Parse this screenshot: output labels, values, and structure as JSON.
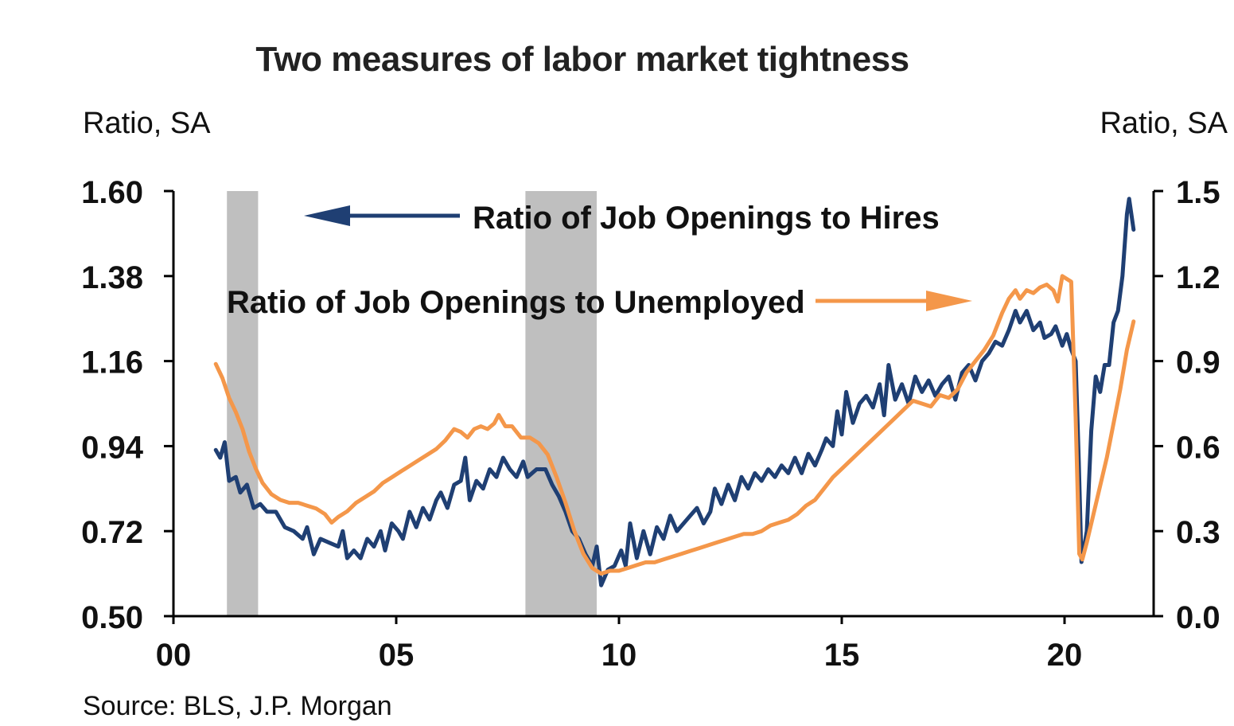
{
  "chart_data": {
    "type": "line",
    "title": "Two measures of labor market tightness",
    "ylabel_left": "Ratio, SA",
    "ylabel_right": "Ratio, SA",
    "source": "Source: BLS, J.P. Morgan",
    "x_range": [
      2000,
      2022
    ],
    "x_ticks": [
      {
        "value": 2000,
        "label": "00"
      },
      {
        "value": 2005,
        "label": "05"
      },
      {
        "value": 2010,
        "label": "10"
      },
      {
        "value": 2015,
        "label": "15"
      },
      {
        "value": 2020,
        "label": "20"
      }
    ],
    "y_left": {
      "range": [
        0.5,
        1.6
      ],
      "ticks": [
        "0.50",
        "0.72",
        "0.94",
        "1.16",
        "1.38",
        "1.60"
      ]
    },
    "y_right": {
      "range": [
        0.0,
        1.5
      ],
      "ticks": [
        "0.0",
        "0.3",
        "0.6",
        "0.9",
        "1.2",
        "1.5"
      ]
    },
    "recessions": [
      [
        2001.2,
        2001.9
      ],
      [
        2007.9,
        2009.5
      ]
    ],
    "series": [
      {
        "name": "Ratio of Job Openings to Hires",
        "axis": "left",
        "color": "#1f3f73",
        "points": [
          [
            2000.95,
            0.93
          ],
          [
            2001.05,
            0.91
          ],
          [
            2001.15,
            0.95
          ],
          [
            2001.25,
            0.85
          ],
          [
            2001.4,
            0.86
          ],
          [
            2001.5,
            0.82
          ],
          [
            2001.65,
            0.84
          ],
          [
            2001.8,
            0.78
          ],
          [
            2001.95,
            0.79
          ],
          [
            2002.1,
            0.77
          ],
          [
            2002.3,
            0.77
          ],
          [
            2002.5,
            0.73
          ],
          [
            2002.7,
            0.72
          ],
          [
            2002.9,
            0.7
          ],
          [
            2003.0,
            0.73
          ],
          [
            2003.15,
            0.66
          ],
          [
            2003.3,
            0.7
          ],
          [
            2003.5,
            0.69
          ],
          [
            2003.7,
            0.68
          ],
          [
            2003.8,
            0.72
          ],
          [
            2003.9,
            0.65
          ],
          [
            2004.05,
            0.67
          ],
          [
            2004.2,
            0.65
          ],
          [
            2004.35,
            0.7
          ],
          [
            2004.5,
            0.68
          ],
          [
            2004.65,
            0.72
          ],
          [
            2004.75,
            0.67
          ],
          [
            2004.9,
            0.74
          ],
          [
            2005.05,
            0.72
          ],
          [
            2005.15,
            0.7
          ],
          [
            2005.3,
            0.77
          ],
          [
            2005.45,
            0.73
          ],
          [
            2005.6,
            0.78
          ],
          [
            2005.75,
            0.75
          ],
          [
            2005.9,
            0.8
          ],
          [
            2006.0,
            0.82
          ],
          [
            2006.15,
            0.78
          ],
          [
            2006.3,
            0.84
          ],
          [
            2006.45,
            0.85
          ],
          [
            2006.55,
            0.91
          ],
          [
            2006.65,
            0.8
          ],
          [
            2006.8,
            0.85
          ],
          [
            2006.95,
            0.83
          ],
          [
            2007.1,
            0.88
          ],
          [
            2007.25,
            0.86
          ],
          [
            2007.4,
            0.91
          ],
          [
            2007.55,
            0.88
          ],
          [
            2007.7,
            0.86
          ],
          [
            2007.85,
            0.9
          ],
          [
            2007.95,
            0.86
          ],
          [
            2008.15,
            0.88
          ],
          [
            2008.35,
            0.88
          ],
          [
            2008.5,
            0.84
          ],
          [
            2008.65,
            0.81
          ],
          [
            2008.8,
            0.77
          ],
          [
            2008.95,
            0.72
          ],
          [
            2009.1,
            0.7
          ],
          [
            2009.25,
            0.66
          ],
          [
            2009.4,
            0.63
          ],
          [
            2009.5,
            0.68
          ],
          [
            2009.6,
            0.58
          ],
          [
            2009.75,
            0.62
          ],
          [
            2009.9,
            0.63
          ],
          [
            2010.05,
            0.67
          ],
          [
            2010.15,
            0.63
          ],
          [
            2010.25,
            0.74
          ],
          [
            2010.4,
            0.65
          ],
          [
            2010.55,
            0.72
          ],
          [
            2010.7,
            0.66
          ],
          [
            2010.85,
            0.73
          ],
          [
            2011.0,
            0.7
          ],
          [
            2011.15,
            0.76
          ],
          [
            2011.3,
            0.72
          ],
          [
            2011.45,
            0.74
          ],
          [
            2011.6,
            0.76
          ],
          [
            2011.75,
            0.78
          ],
          [
            2011.9,
            0.74
          ],
          [
            2012.05,
            0.77
          ],
          [
            2012.15,
            0.83
          ],
          [
            2012.3,
            0.79
          ],
          [
            2012.45,
            0.84
          ],
          [
            2012.6,
            0.8
          ],
          [
            2012.75,
            0.86
          ],
          [
            2012.9,
            0.83
          ],
          [
            2013.05,
            0.87
          ],
          [
            2013.2,
            0.85
          ],
          [
            2013.35,
            0.88
          ],
          [
            2013.5,
            0.86
          ],
          [
            2013.65,
            0.89
          ],
          [
            2013.8,
            0.87
          ],
          [
            2013.95,
            0.91
          ],
          [
            2014.1,
            0.87
          ],
          [
            2014.25,
            0.92
          ],
          [
            2014.4,
            0.89
          ],
          [
            2014.55,
            0.93
          ],
          [
            2014.65,
            0.96
          ],
          [
            2014.8,
            0.94
          ],
          [
            2014.9,
            1.03
          ],
          [
            2015.0,
            0.97
          ],
          [
            2015.1,
            1.08
          ],
          [
            2015.25,
            1.0
          ],
          [
            2015.4,
            1.05
          ],
          [
            2015.55,
            1.07
          ],
          [
            2015.7,
            1.04
          ],
          [
            2015.85,
            1.1
          ],
          [
            2015.95,
            1.02
          ],
          [
            2016.05,
            1.15
          ],
          [
            2016.2,
            1.06
          ],
          [
            2016.35,
            1.1
          ],
          [
            2016.5,
            1.05
          ],
          [
            2016.65,
            1.12
          ],
          [
            2016.8,
            1.08
          ],
          [
            2016.95,
            1.11
          ],
          [
            2017.1,
            1.07
          ],
          [
            2017.25,
            1.1
          ],
          [
            2017.4,
            1.12
          ],
          [
            2017.55,
            1.06
          ],
          [
            2017.7,
            1.13
          ],
          [
            2017.85,
            1.15
          ],
          [
            2018.0,
            1.11
          ],
          [
            2018.15,
            1.16
          ],
          [
            2018.3,
            1.18
          ],
          [
            2018.45,
            1.21
          ],
          [
            2018.6,
            1.2
          ],
          [
            2018.75,
            1.24
          ],
          [
            2018.9,
            1.29
          ],
          [
            2019.0,
            1.26
          ],
          [
            2019.15,
            1.29
          ],
          [
            2019.3,
            1.24
          ],
          [
            2019.45,
            1.26
          ],
          [
            2019.55,
            1.22
          ],
          [
            2019.7,
            1.23
          ],
          [
            2019.8,
            1.25
          ],
          [
            2019.95,
            1.2
          ],
          [
            2020.05,
            1.23
          ],
          [
            2020.15,
            1.19
          ],
          [
            2020.25,
            1.16
          ],
          [
            2020.32,
            0.9
          ],
          [
            2020.38,
            0.64
          ],
          [
            2020.5,
            0.72
          ],
          [
            2020.6,
            0.98
          ],
          [
            2020.7,
            1.12
          ],
          [
            2020.8,
            1.08
          ],
          [
            2020.9,
            1.15
          ],
          [
            2021.0,
            1.15
          ],
          [
            2021.1,
            1.26
          ],
          [
            2021.2,
            1.29
          ],
          [
            2021.3,
            1.38
          ],
          [
            2021.4,
            1.54
          ],
          [
            2021.45,
            1.58
          ],
          [
            2021.55,
            1.5
          ]
        ]
      },
      {
        "name": "Ratio of Job Openings to Unemployed",
        "axis": "right",
        "color": "#f4974a",
        "points": [
          [
            2000.95,
            0.89
          ],
          [
            2001.1,
            0.84
          ],
          [
            2001.25,
            0.77
          ],
          [
            2001.4,
            0.72
          ],
          [
            2001.55,
            0.66
          ],
          [
            2001.7,
            0.58
          ],
          [
            2001.85,
            0.52
          ],
          [
            2002.0,
            0.47
          ],
          [
            2002.2,
            0.43
          ],
          [
            2002.4,
            0.41
          ],
          [
            2002.6,
            0.4
          ],
          [
            2002.8,
            0.4
          ],
          [
            2003.0,
            0.39
          ],
          [
            2003.2,
            0.38
          ],
          [
            2003.4,
            0.36
          ],
          [
            2003.55,
            0.33
          ],
          [
            2003.7,
            0.35
          ],
          [
            2003.9,
            0.37
          ],
          [
            2004.1,
            0.4
          ],
          [
            2004.3,
            0.42
          ],
          [
            2004.5,
            0.44
          ],
          [
            2004.7,
            0.47
          ],
          [
            2004.9,
            0.49
          ],
          [
            2005.1,
            0.51
          ],
          [
            2005.3,
            0.53
          ],
          [
            2005.5,
            0.55
          ],
          [
            2005.7,
            0.57
          ],
          [
            2005.9,
            0.59
          ],
          [
            2006.1,
            0.62
          ],
          [
            2006.3,
            0.66
          ],
          [
            2006.45,
            0.65
          ],
          [
            2006.6,
            0.63
          ],
          [
            2006.75,
            0.66
          ],
          [
            2006.9,
            0.67
          ],
          [
            2007.05,
            0.66
          ],
          [
            2007.2,
            0.68
          ],
          [
            2007.3,
            0.71
          ],
          [
            2007.45,
            0.67
          ],
          [
            2007.6,
            0.67
          ],
          [
            2007.8,
            0.63
          ],
          [
            2008.0,
            0.63
          ],
          [
            2008.2,
            0.61
          ],
          [
            2008.4,
            0.57
          ],
          [
            2008.6,
            0.49
          ],
          [
            2008.8,
            0.4
          ],
          [
            2009.0,
            0.3
          ],
          [
            2009.2,
            0.22
          ],
          [
            2009.4,
            0.17
          ],
          [
            2009.6,
            0.15
          ],
          [
            2009.8,
            0.16
          ],
          [
            2010.0,
            0.16
          ],
          [
            2010.2,
            0.17
          ],
          [
            2010.4,
            0.18
          ],
          [
            2010.6,
            0.19
          ],
          [
            2010.8,
            0.19
          ],
          [
            2011.0,
            0.2
          ],
          [
            2011.2,
            0.21
          ],
          [
            2011.4,
            0.22
          ],
          [
            2011.6,
            0.23
          ],
          [
            2011.8,
            0.24
          ],
          [
            2012.0,
            0.25
          ],
          [
            2012.2,
            0.26
          ],
          [
            2012.4,
            0.27
          ],
          [
            2012.6,
            0.28
          ],
          [
            2012.8,
            0.29
          ],
          [
            2013.0,
            0.29
          ],
          [
            2013.2,
            0.3
          ],
          [
            2013.4,
            0.32
          ],
          [
            2013.6,
            0.33
          ],
          [
            2013.8,
            0.34
          ],
          [
            2014.0,
            0.36
          ],
          [
            2014.2,
            0.39
          ],
          [
            2014.4,
            0.41
          ],
          [
            2014.6,
            0.45
          ],
          [
            2014.8,
            0.49
          ],
          [
            2015.0,
            0.52
          ],
          [
            2015.2,
            0.55
          ],
          [
            2015.4,
            0.58
          ],
          [
            2015.6,
            0.61
          ],
          [
            2015.8,
            0.64
          ],
          [
            2016.0,
            0.67
          ],
          [
            2016.2,
            0.7
          ],
          [
            2016.4,
            0.73
          ],
          [
            2016.6,
            0.76
          ],
          [
            2016.8,
            0.75
          ],
          [
            2017.0,
            0.74
          ],
          [
            2017.2,
            0.78
          ],
          [
            2017.4,
            0.77
          ],
          [
            2017.6,
            0.8
          ],
          [
            2017.8,
            0.86
          ],
          [
            2018.0,
            0.9
          ],
          [
            2018.2,
            0.94
          ],
          [
            2018.4,
            0.99
          ],
          [
            2018.6,
            1.07
          ],
          [
            2018.75,
            1.12
          ],
          [
            2018.9,
            1.15
          ],
          [
            2019.0,
            1.12
          ],
          [
            2019.15,
            1.15
          ],
          [
            2019.3,
            1.14
          ],
          [
            2019.45,
            1.16
          ],
          [
            2019.6,
            1.17
          ],
          [
            2019.75,
            1.15
          ],
          [
            2019.85,
            1.11
          ],
          [
            2019.95,
            1.2
          ],
          [
            2020.05,
            1.19
          ],
          [
            2020.15,
            1.18
          ],
          [
            2020.25,
            0.7
          ],
          [
            2020.33,
            0.22
          ],
          [
            2020.4,
            0.2
          ],
          [
            2020.5,
            0.26
          ],
          [
            2020.65,
            0.36
          ],
          [
            2020.8,
            0.46
          ],
          [
            2020.95,
            0.56
          ],
          [
            2021.1,
            0.68
          ],
          [
            2021.25,
            0.8
          ],
          [
            2021.4,
            0.94
          ],
          [
            2021.55,
            1.04
          ]
        ]
      }
    ]
  }
}
